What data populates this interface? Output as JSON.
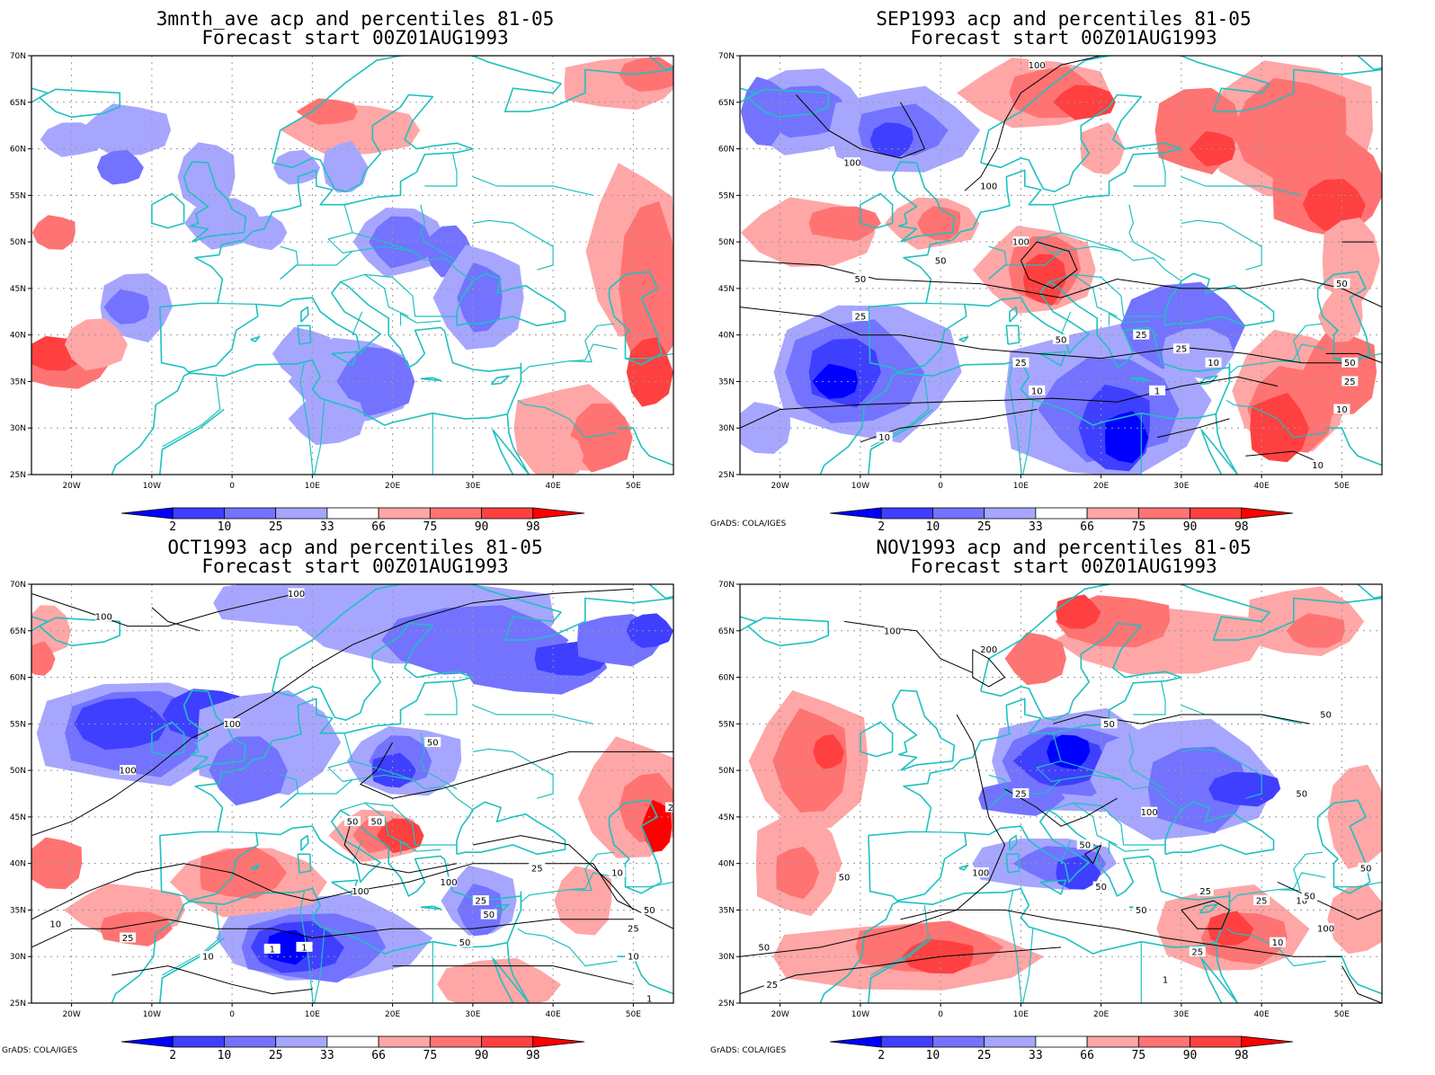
{
  "panels": [
    {
      "title_line1": "3mnth_ave acp and percentiles 81-05",
      "title_line2": "Forecast start 00Z01AUG1993",
      "credit": ""
    },
    {
      "title_line1": "SEP1993 acp and percentiles 81-05",
      "title_line2": "Forecast start 00Z01AUG1993",
      "credit": "GrADS: COLA/IGES"
    },
    {
      "title_line1": "OCT1993 acp and percentiles 81-05",
      "title_line2": "Forecast start 00Z01AUG1993",
      "credit": "GrADS: COLA/IGES"
    },
    {
      "title_line1": "NOV1993 acp and percentiles 81-05",
      "title_line2": "Forecast start 00Z01AUG1993",
      "credit": "GrADS: COLA/IGES"
    }
  ],
  "axes": {
    "lat_labels": [
      "70N",
      "65N",
      "60N",
      "55N",
      "50N",
      "45N",
      "40N",
      "35N",
      "30N",
      "25N"
    ],
    "lon_labels": [
      "20W",
      "10W",
      "0",
      "10E",
      "20E",
      "30E",
      "40E",
      "50E"
    ]
  },
  "colorbar": {
    "labels": [
      "2",
      "10",
      "25",
      "33",
      "66",
      "75",
      "90",
      "98"
    ],
    "colors": [
      "#0000ff",
      "#3f3fff",
      "#7373ff",
      "#a6a6ff",
      "#ffffff",
      "#ffa6a6",
      "#ff7373",
      "#ff4040",
      "#ff0000"
    ]
  },
  "colors": {
    "coastline": "#20c0c0",
    "contour": "#000000",
    "grid": "#999999"
  },
  "contour_labels": {
    "sep": [
      "100",
      "100",
      "100",
      "100",
      "50",
      "50",
      "25",
      "50",
      "25",
      "10",
      "10",
      "1",
      "10",
      "25",
      "50",
      "50",
      "25",
      "10",
      "10",
      "25"
    ],
    "oct": [
      "100",
      "100",
      "100",
      "100",
      "50",
      "50",
      "50",
      "100",
      "100",
      "25",
      "50",
      "10",
      "25",
      "1",
      "1",
      "10",
      "50",
      "25",
      "10",
      "25",
      "50",
      "25",
      "10",
      "1"
    ],
    "nov": [
      "100",
      "200",
      "50",
      "50",
      "50",
      "25",
      "100",
      "50",
      "100",
      "50",
      "50",
      "25",
      "50",
      "25",
      "10",
      "100",
      "50",
      "50",
      "25",
      "10",
      "50",
      "25",
      "1"
    ]
  }
}
